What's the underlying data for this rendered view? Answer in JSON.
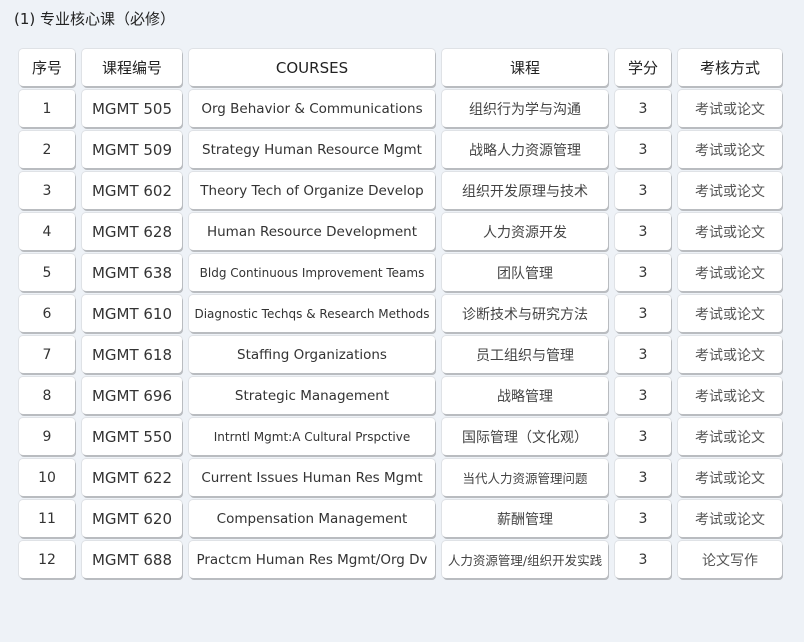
{
  "title": "(1) 专业核心课（必修）",
  "headers": [
    "序号",
    "课程编号",
    "COURSES",
    "课程",
    "学分",
    "考核方式"
  ],
  "rows": [
    [
      "1",
      "MGMT 505",
      "Org Behavior & Communications",
      "组织行为学与沟通",
      "3",
      "考试或论文"
    ],
    [
      "2",
      "MGMT 509",
      "Strategy Human Resource Mgmt",
      "战略人力资源管理",
      "3",
      "考试或论文"
    ],
    [
      "3",
      "MGMT 602",
      "Theory Tech of Organize Develop",
      "组织开发原理与技术",
      "3",
      "考试或论文"
    ],
    [
      "4",
      "MGMT 628",
      "Human Resource Development",
      "人力资源开发",
      "3",
      "考试或论文"
    ],
    [
      "5",
      "MGMT 638",
      "Bldg Continuous Improvement Teams",
      "团队管理",
      "3",
      "考试或论文"
    ],
    [
      "6",
      "MGMT 610",
      "Diagnostic Techqs & Research Methods",
      "诊断技术与研究方法",
      "3",
      "考试或论文"
    ],
    [
      "7",
      "MGMT 618",
      "Staffing Organizations",
      "员工组织与管理",
      "3",
      "考试或论文"
    ],
    [
      "8",
      "MGMT 696",
      "Strategic Management",
      "战略管理",
      "3",
      "考试或论文"
    ],
    [
      "9",
      "MGMT 550",
      "Intrntl Mgmt:A Cultural Prspctive",
      "国际管理（文化观）",
      "3",
      "考试或论文"
    ],
    [
      "10",
      "MGMT 622",
      "Current Issues Human Res Mgmt",
      "当代人力资源管理问题",
      "3",
      "考试或论文"
    ],
    [
      "11",
      "MGMT 620",
      "Compensation Management",
      "薪酬管理",
      "3",
      "考试或论文"
    ],
    [
      "12",
      "MGMT 688",
      "Practcm Human Res Mgmt/Org Dv",
      "人力资源管理/组织开发实践",
      "3",
      "论文写作"
    ]
  ]
}
